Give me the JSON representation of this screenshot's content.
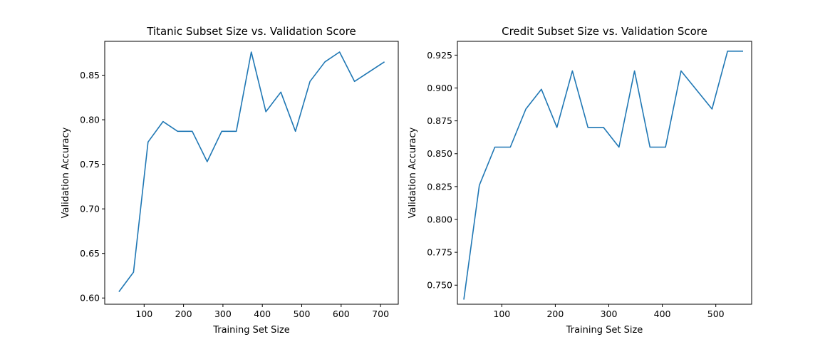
{
  "chart_data": [
    {
      "type": "line",
      "title": "Titanic Subset Size vs. Validation Score",
      "xlabel": "Training Set Size",
      "ylabel": "Validation Accuracy",
      "xlim": [
        0,
        745
      ],
      "ylim": [
        0.593,
        0.888
      ],
      "xticks": [
        100,
        200,
        300,
        400,
        500,
        600,
        700
      ],
      "yticks": [
        0.6,
        0.65,
        0.7,
        0.75,
        0.8,
        0.85
      ],
      "ytick_labels": [
        "0.60",
        "0.65",
        "0.70",
        "0.75",
        "0.80",
        "0.85"
      ],
      "grid": false,
      "color": "#1f77b4",
      "x": [
        36,
        73,
        110,
        148,
        185,
        222,
        260,
        297,
        334,
        372,
        409,
        447,
        484,
        521,
        559,
        596,
        634,
        710
      ],
      "y": [
        0.607,
        0.629,
        0.775,
        0.798,
        0.787,
        0.787,
        0.753,
        0.787,
        0.787,
        0.876,
        0.809,
        0.831,
        0.787,
        0.843,
        0.865,
        0.876,
        0.843,
        0.865
      ]
    },
    {
      "type": "line",
      "title": "Credit Subset Size vs. Validation Score",
      "xlabel": "Training Set Size",
      "ylabel": "Validation Accuracy",
      "xlim": [
        17,
        567
      ],
      "ylim": [
        0.7355,
        0.9355
      ],
      "xticks": [
        100,
        200,
        300,
        400,
        500
      ],
      "yticks": [
        0.75,
        0.775,
        0.8,
        0.825,
        0.85,
        0.875,
        0.9,
        0.925
      ],
      "ytick_labels": [
        "0.750",
        "0.775",
        "0.800",
        "0.825",
        "0.850",
        "0.875",
        "0.900",
        "0.925"
      ],
      "grid": false,
      "color": "#1f77b4",
      "x": [
        29,
        58,
        87,
        116,
        145,
        174,
        203,
        232,
        261,
        290,
        319,
        348,
        377,
        406,
        435,
        493,
        522,
        551
      ],
      "y": [
        0.739,
        0.826,
        0.855,
        0.855,
        0.884,
        0.899,
        0.87,
        0.913,
        0.87,
        0.87,
        0.855,
        0.913,
        0.855,
        0.855,
        0.913,
        0.884,
        0.928,
        0.928
      ]
    }
  ]
}
